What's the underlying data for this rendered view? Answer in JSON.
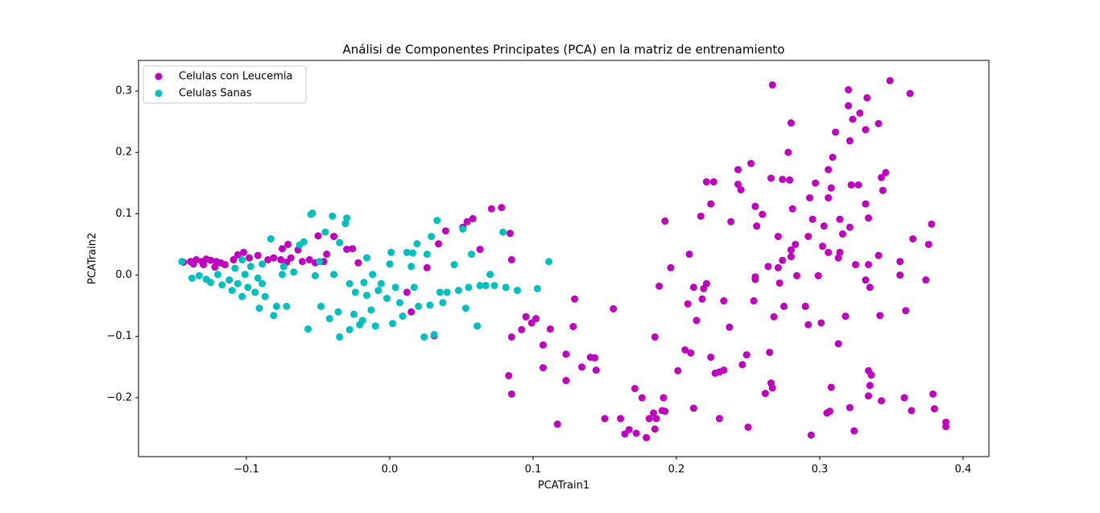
{
  "chart_data": {
    "type": "scatter",
    "title": "Análisi de Componentes Principates (PCA) en la matriz de entrenamiento",
    "x_label": "PCATrain1",
    "y_label": "PCATrain2",
    "xlim": [
      -0.1753,
      0.418
    ],
    "ylim": [
      -0.296,
      0.35
    ],
    "xticks": [
      {
        "value": -0.1,
        "label": "−0.1"
      },
      {
        "value": 0,
        "label": "0.0"
      },
      {
        "value": 0.1,
        "label": "0.1"
      },
      {
        "value": 0.2,
        "label": "0.2"
      },
      {
        "value": 0.3,
        "label": "0.3"
      },
      {
        "value": 0.4,
        "label": "0.4"
      }
    ],
    "yticks": [
      {
        "value": -0.2,
        "label": "−0.2"
      },
      {
        "value": -0.1,
        "label": "−0.1"
      },
      {
        "value": 0,
        "label": "0.0"
      },
      {
        "value": 0.1,
        "label": "0.1"
      },
      {
        "value": 0.2,
        "label": "0.2"
      },
      {
        "value": 0.3,
        "label": "0.3"
      }
    ],
    "legend": "upper left",
    "series": [
      {
        "name": "Celulas con Leucemia",
        "color": "#bf00bf",
        "x": [
          0.349,
          0.267,
          0.32,
          0.363,
          0.333,
          0.32,
          0.328,
          0.323,
          0.341,
          0.28,
          0.332,
          0.311,
          0.321,
          0.309,
          0.278,
          0.252,
          0.346,
          0.306,
          0.343,
          0.243,
          0.266,
          0.274,
          0.279,
          0.221,
          0.226,
          0.297,
          0.322,
          0.327,
          0.308,
          0.243,
          0.245,
          0.344,
          0.293,
          0.306,
          0.224,
          0.255,
          0.281,
          0.332,
          0.217,
          0.26,
          0.334,
          0.295,
          0.314,
          0.378,
          0.238,
          0.192,
          0.256,
          0.303,
          0.321,
          0.316,
          0.271,
          0.292,
          0.365,
          0.283,
          0.376,
          0.302,
          0.28,
          0.306,
          0.314,
          0.209,
          0.341,
          0.313,
          0.28,
          0.274,
          0.356,
          0.334,
          0.325,
          0.196,
          0.264,
          0.271,
          0.255,
          0.255,
          0.284,
          0.299,
          0.356,
          0.374,
          0.332,
          0.272,
          0.188,
          0.212,
          0.221,
          0.219,
          0.335,
          0.129,
          0.218,
          0.233,
          0.254,
          0.208,
          0.156,
          0.29,
          0.275,
          0.36,
          0.318,
          0.342,
          0.268,
          0.095,
          0.102,
          0.099,
          0.092,
          0.112,
          0.128,
          0.214,
          0.237,
          0.292,
          0.301,
          0.085,
          0.185,
          0.107,
          0.313,
          0.123,
          0.143,
          0.14,
          0.206,
          0.21,
          0.224,
          0.265,
          0.249,
          0.107,
          0.144,
          0.134,
          0.201,
          0.227,
          0.23,
          0.233,
          0.246,
          0.083,
          0.334,
          0.336,
          0.123,
          0.266,
          0.267,
          0.308,
          0.171,
          0.335,
          0.334,
          0.085,
          0.176,
          0.191,
          0.262,
          0.379,
          0.359,
          0.343,
          0.212,
          0.19,
          0.192,
          0.184,
          0.321,
          0.307,
          0.305,
          0.364,
          0.38,
          0.15,
          0.161,
          0.23,
          0.181,
          0.186,
          0.117,
          0.388,
          0.388,
          0.25,
          0.324,
          0.167,
          0.164,
          0.185,
          0.172,
          0.179,
          0.294,
          0.078,
          0.071,
          0.058,
          0.054,
          0.051,
          0.039,
          0.084,
          0.034,
          0.063,
          0.085,
          0.026,
          0.031,
          0.015,
          0.012,
          -0.039,
          -0.05,
          -0.022,
          -0.026,
          -0.03,
          -0.044,
          -0.071,
          -0.075,
          -0.064,
          -0.144,
          -0.139,
          -0.135,
          -0.131,
          -0.128,
          -0.125,
          -0.121,
          -0.118,
          -0.115,
          -0.109,
          -0.106,
          -0.102,
          -0.098,
          -0.092,
          -0.085,
          -0.081,
          -0.076,
          -0.072,
          -0.069,
          -0.061,
          -0.056,
          -0.052,
          -0.046,
          -0.137,
          -0.13,
          -0.122
        ],
        "values": [
          0.317,
          0.31,
          0.302,
          0.296,
          0.289,
          0.276,
          0.264,
          0.254,
          0.247,
          0.248,
          0.237,
          0.233,
          0.219,
          0.192,
          0.2,
          0.182,
          0.167,
          0.172,
          0.159,
          0.172,
          0.158,
          0.156,
          0.155,
          0.152,
          0.152,
          0.15,
          0.147,
          0.147,
          0.142,
          0.148,
          0.139,
          0.138,
          0.126,
          0.126,
          0.116,
          0.112,
          0.108,
          0.116,
          0.096,
          0.099,
          0.093,
          0.091,
          0.091,
          0.083,
          0.087,
          0.088,
          0.08,
          0.08,
          0.078,
          0.067,
          0.063,
          0.063,
          0.059,
          0.05,
          0.05,
          0.047,
          0.041,
          0.037,
          0.037,
          0.034,
          0.032,
          0.028,
          0.03,
          0.024,
          0.022,
          0.017,
          0.017,
          0.012,
          0.014,
          0.012,
          -0.003,
          -0.007,
          -0.001,
          -0.001,
          0,
          -0.008,
          -0.008,
          -0.013,
          -0.018,
          -0.02,
          -0.014,
          -0.022,
          -0.02,
          -0.039,
          -0.039,
          -0.042,
          -0.042,
          -0.047,
          -0.055,
          -0.051,
          -0.051,
          -0.058,
          -0.067,
          -0.066,
          -0.068,
          -0.068,
          -0.071,
          -0.078,
          -0.089,
          -0.088,
          -0.084,
          -0.074,
          -0.085,
          -0.081,
          -0.078,
          -0.101,
          -0.101,
          -0.114,
          -0.112,
          -0.129,
          -0.135,
          -0.134,
          -0.122,
          -0.127,
          -0.134,
          -0.126,
          -0.13,
          -0.151,
          -0.155,
          -0.15,
          -0.156,
          -0.16,
          -0.158,
          -0.155,
          -0.146,
          -0.164,
          -0.156,
          -0.163,
          -0.172,
          -0.176,
          -0.184,
          -0.183,
          -0.185,
          -0.18,
          -0.197,
          -0.194,
          -0.2,
          -0.2,
          -0.193,
          -0.194,
          -0.2,
          -0.205,
          -0.217,
          -0.221,
          -0.222,
          -0.225,
          -0.216,
          -0.222,
          -0.225,
          -0.221,
          -0.218,
          -0.234,
          -0.234,
          -0.234,
          -0.234,
          -0.234,
          -0.243,
          -0.24,
          -0.247,
          -0.248,
          -0.254,
          -0.252,
          -0.259,
          -0.251,
          -0.258,
          -0.265,
          -0.261,
          0.11,
          0.108,
          0.092,
          0.087,
          0.078,
          0.072,
          0.068,
          0.051,
          0.042,
          0.025,
          0.012,
          -0.099,
          -0.06,
          -0.028,
          0.063,
          0.064,
          0.02,
          0.043,
          0.042,
          0.034,
          0.05,
          0.043,
          0.041,
          0.021,
          0.022,
          0.025,
          0.022,
          0.026,
          0.024,
          0.022,
          0.02,
          0.017,
          0.025,
          0.033,
          0.037,
          0.028,
          0.032,
          0.025,
          0.028,
          0.025,
          0.021,
          0.028,
          0.022,
          0.025,
          0.02,
          0.022,
          0.018,
          0.017,
          0.013
        ]
      },
      {
        "name": "Celulas Sanas",
        "color": "#00bfbf",
        "x": [
          -0.145,
          -0.138,
          -0.133,
          -0.128,
          -0.125,
          -0.12,
          -0.117,
          -0.112,
          -0.11,
          -0.108,
          -0.106,
          -0.103,
          -0.101,
          -0.099,
          -0.097,
          -0.094,
          -0.092,
          -0.091,
          -0.089,
          -0.087,
          -0.083,
          -0.081,
          -0.079,
          -0.075,
          -0.072,
          -0.067,
          -0.063,
          -0.06,
          -0.057,
          -0.055,
          -0.054,
          -0.052,
          -0.048,
          -0.045,
          -0.042,
          -0.04,
          -0.036,
          -0.035,
          -0.031,
          -0.03,
          -0.028,
          -0.025,
          -0.024,
          -0.021,
          -0.019,
          -0.018,
          -0.016,
          -0.013,
          -0.012,
          -0.01,
          -0.008,
          -0.006,
          -0.002,
          0,
          0.001,
          0.002,
          0.004,
          0.007,
          0.009,
          0.012,
          0.015,
          0.016,
          0.017,
          0.019,
          0.02,
          0.024,
          0.026,
          0.028,
          0.029,
          0.031,
          0.033,
          0.035,
          0.037,
          0.04,
          0.045,
          0.048,
          0.051,
          0.053,
          0.055,
          0.057,
          0.061,
          0.063,
          0.067,
          0.07,
          0.073,
          0.079,
          0.081,
          0.089,
          0.103,
          0.111,
          -0.035,
          -0.049,
          -0.039,
          -0.028,
          -0.016,
          -0.103,
          -0.089,
          -0.074
        ],
        "values": [
          0.022,
          -0.005,
          -0.001,
          -0.007,
          -0.012,
          0.001,
          -0.016,
          -0.008,
          -0.025,
          0.011,
          -0.014,
          -0.035,
          0.001,
          -0.02,
          0.014,
          -0.028,
          -0.005,
          -0.054,
          -0.014,
          -0.035,
          0.059,
          -0.066,
          -0.051,
          0.001,
          -0.051,
          0.005,
          0.049,
          0.054,
          -0.088,
          0.099,
          0.101,
          -0.001,
          -0.051,
          0.07,
          -0.071,
          0.096,
          -0.06,
          -0.101,
          0.084,
          0.093,
          -0.089,
          -0.064,
          -0.028,
          -0.081,
          -0.074,
          -0.012,
          0.028,
          -0.057,
          0.001,
          -0.083,
          -0.025,
          -0.014,
          -0.038,
          0.018,
          0.037,
          -0.079,
          -0.02,
          -0.045,
          -0.067,
          0.037,
          0.014,
          0.036,
          -0.02,
          0.051,
          -0.051,
          -0.101,
          0.034,
          -0.049,
          0.063,
          -0.097,
          0.089,
          -0.028,
          -0.045,
          -0.028,
          0.017,
          -0.025,
          0.075,
          -0.054,
          -0.02,
          0.034,
          -0.083,
          -0.017,
          -0.017,
          0.001,
          -0.017,
          0.07,
          -0.02,
          -0.025,
          -0.022,
          0.022,
          0.053,
          0.022,
          0.001,
          -0.014,
          -0.033,
          0.025,
          0.018,
          0.014
        ]
      }
    ]
  }
}
